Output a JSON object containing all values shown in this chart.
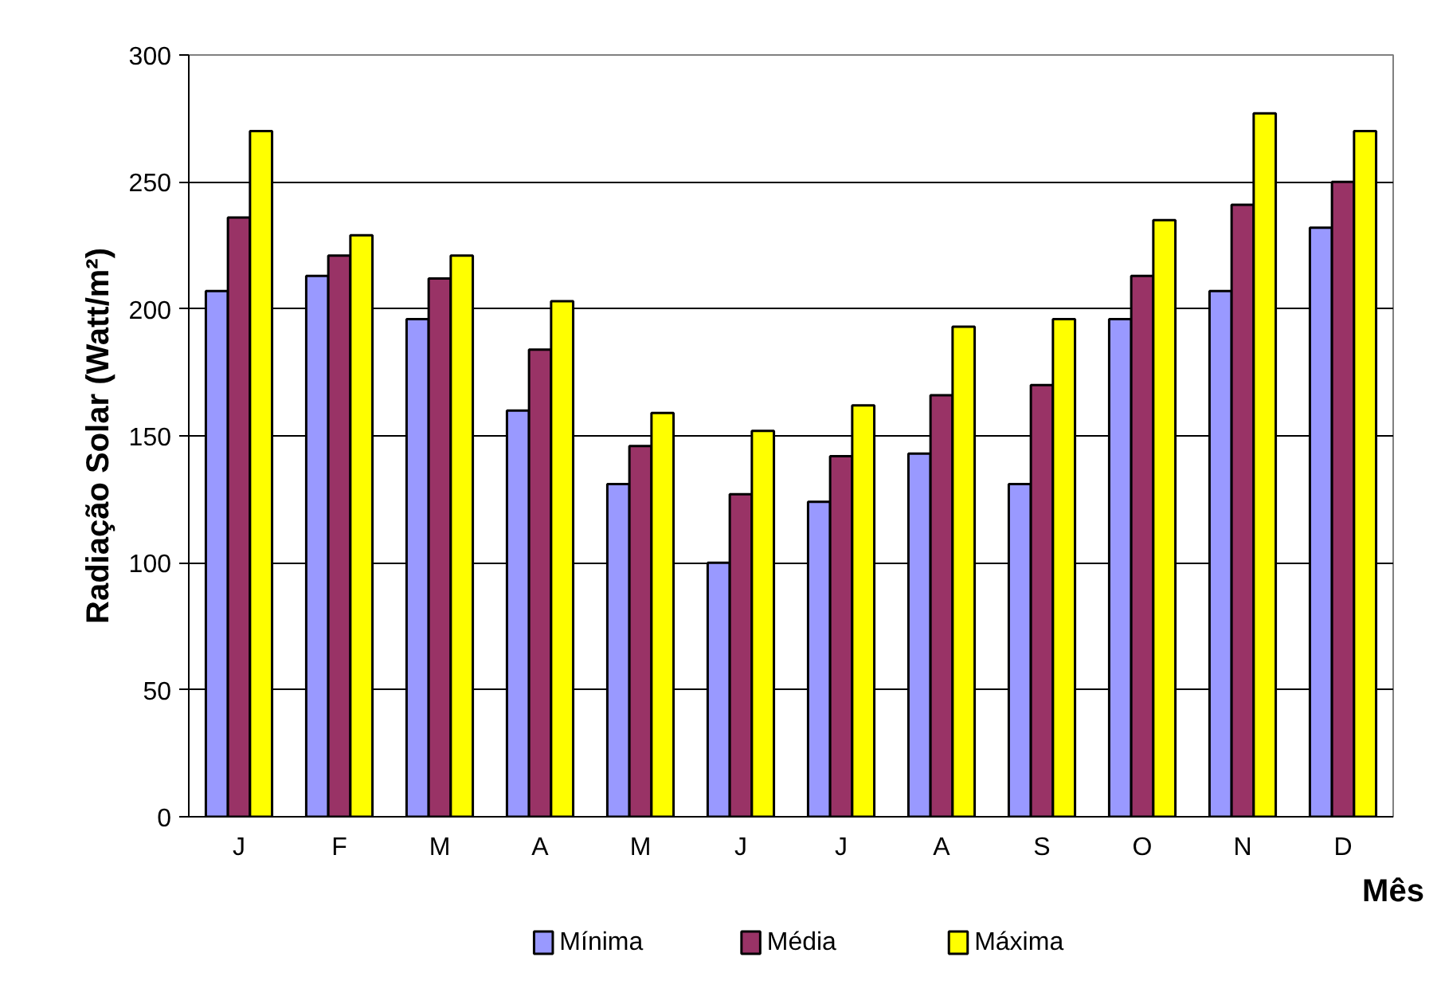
{
  "chart_data": {
    "type": "bar",
    "xlabel": "Mês",
    "ylabel": "Radiação Solar (Watt/m²)",
    "categories": [
      "J",
      "F",
      "M",
      "A",
      "M",
      "J",
      "J",
      "A",
      "S",
      "O",
      "N",
      "D"
    ],
    "series": [
      {
        "name": "Mínima",
        "color": "#9999ff",
        "values": [
          207,
          213,
          196,
          160,
          131,
          100,
          124,
          143,
          131,
          196,
          207,
          232
        ]
      },
      {
        "name": "Média",
        "color": "#993366",
        "values": [
          236,
          221,
          212,
          184,
          146,
          127,
          142,
          166,
          170,
          213,
          241,
          250
        ]
      },
      {
        "name": "Máxima",
        "color": "#ffff00",
        "values": [
          270,
          229,
          221,
          203,
          159,
          152,
          162,
          193,
          196,
          235,
          277,
          270
        ]
      }
    ],
    "ylim": [
      0,
      300
    ],
    "yticks": [
      0,
      50,
      100,
      150,
      200,
      250,
      300
    ],
    "grid": "y",
    "legend": "bottom"
  }
}
